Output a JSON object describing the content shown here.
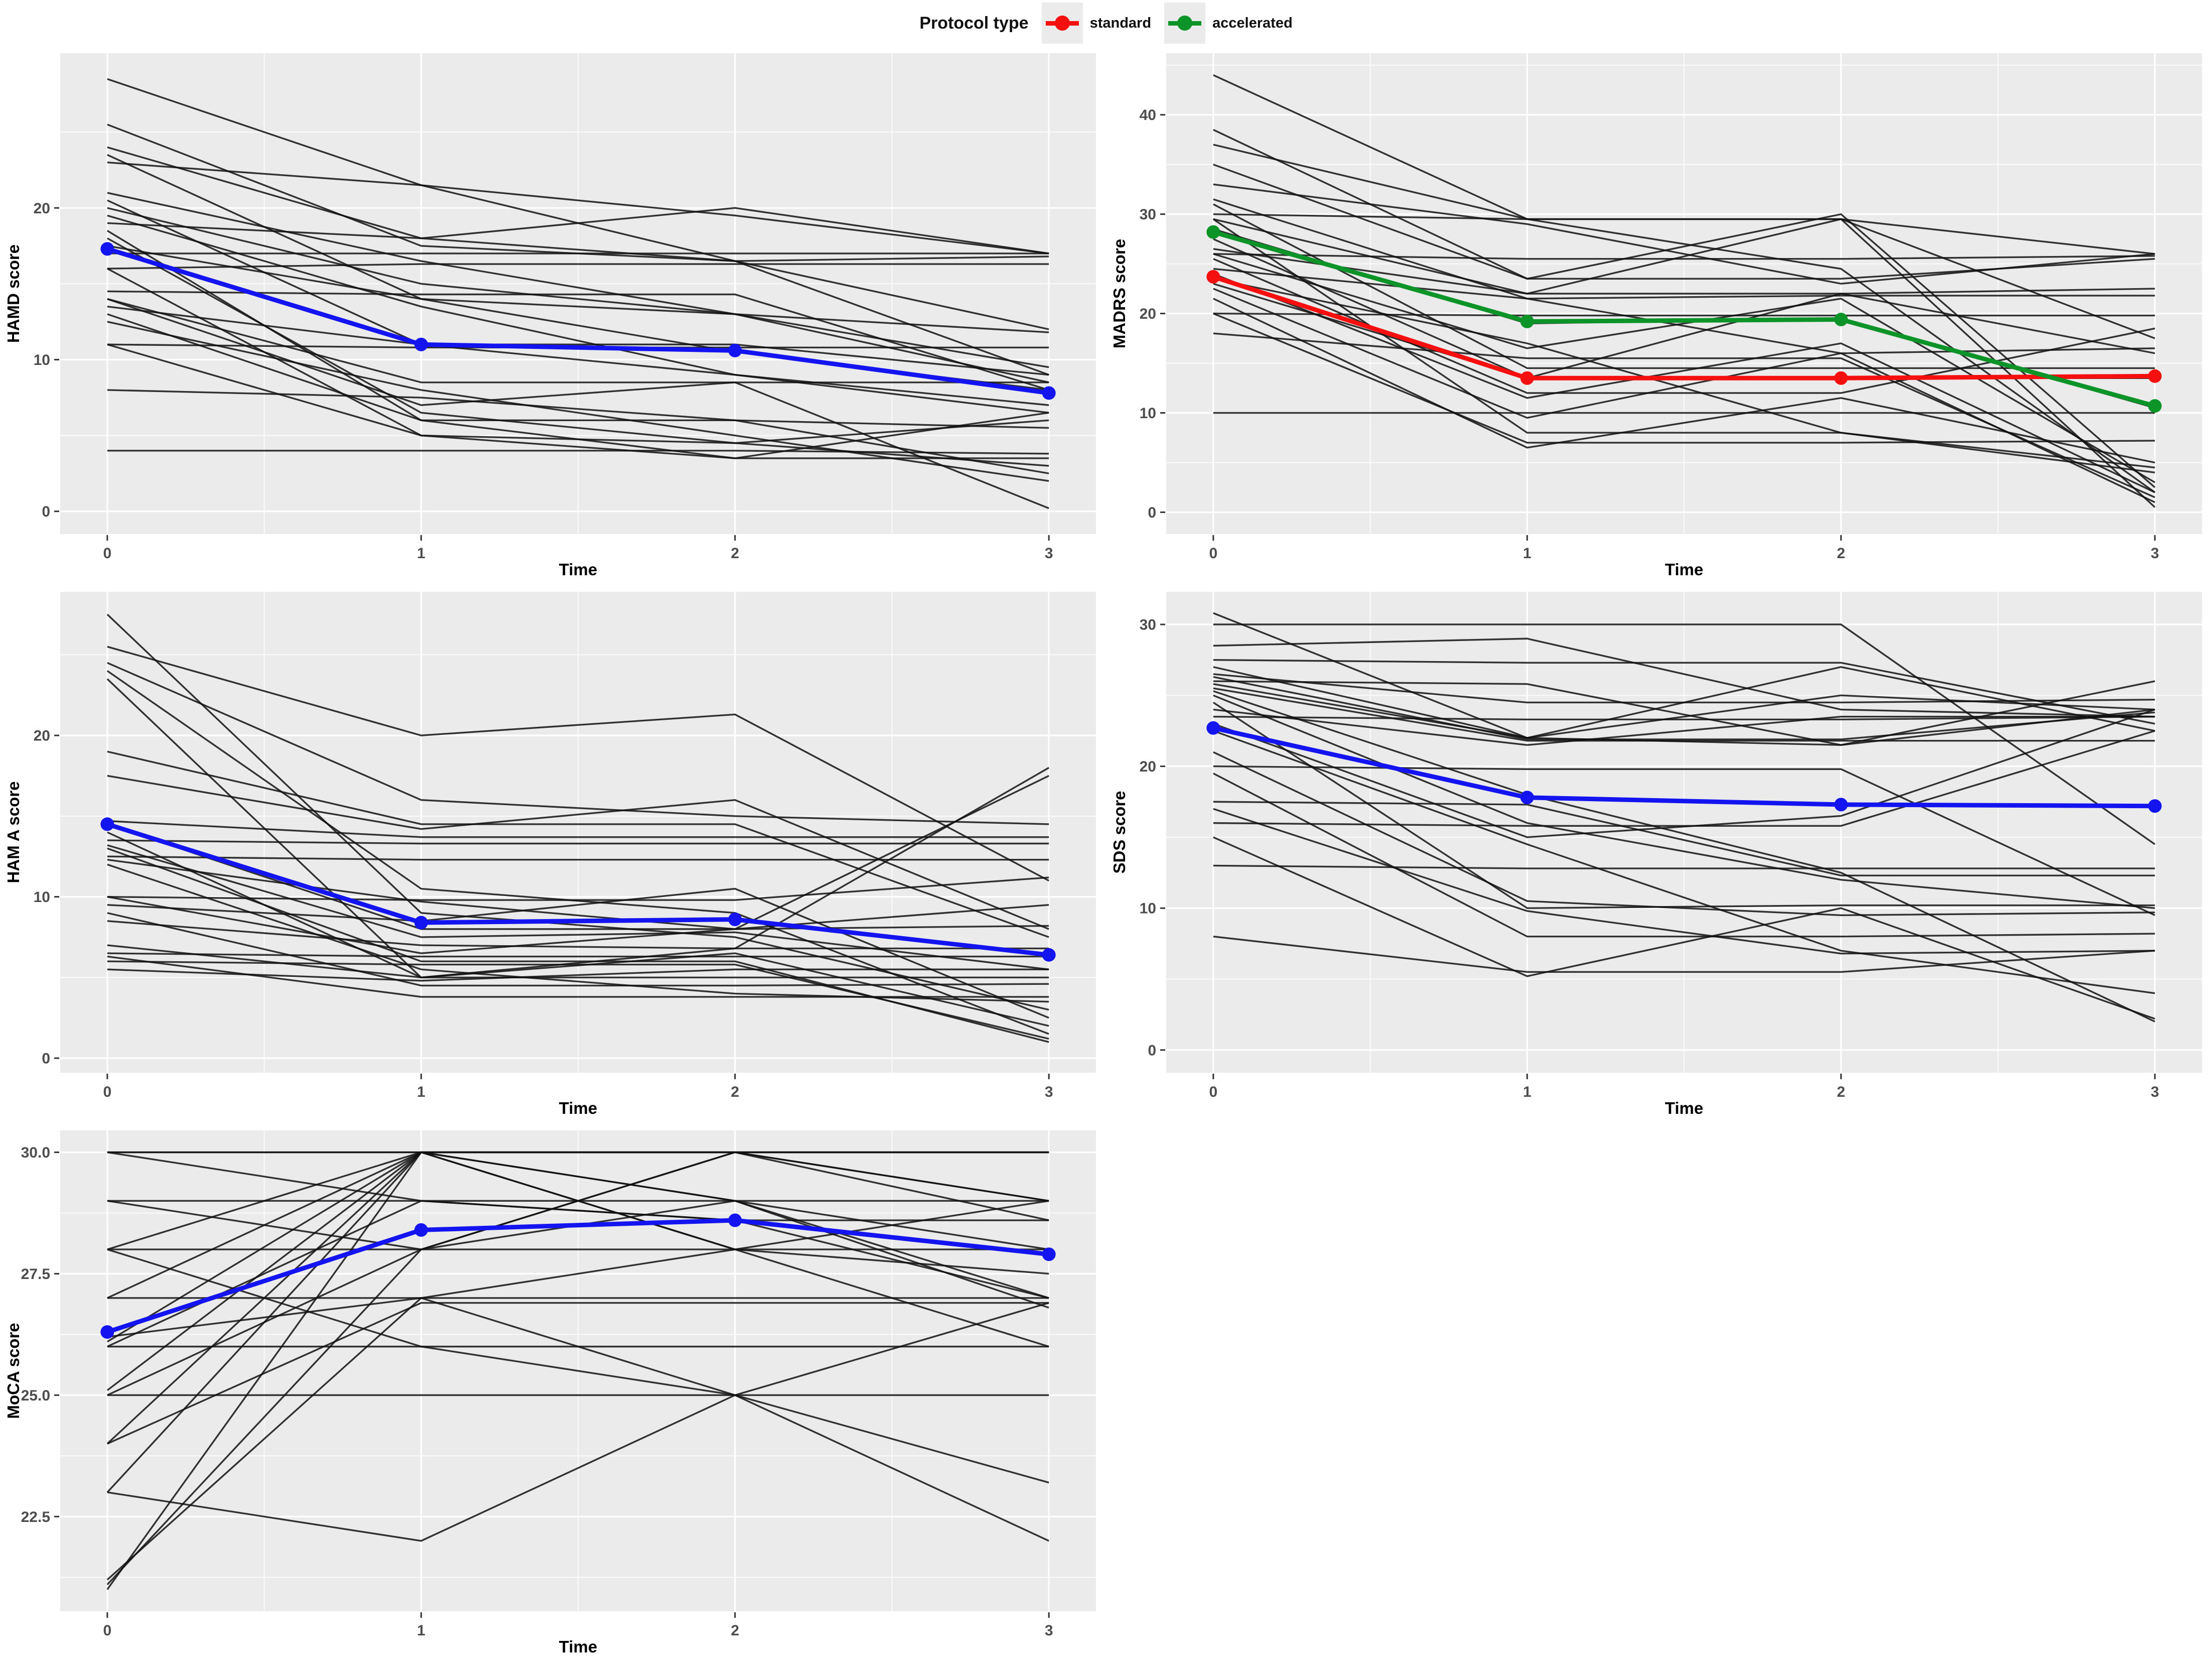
{
  "legend": {
    "title": "Protocol type",
    "items": [
      {
        "label": "standard",
        "color": "#f50f0f"
      },
      {
        "label": "accelerated",
        "color": "#0c9428"
      }
    ]
  },
  "colors": {
    "panel_bg": "#ebebeb",
    "grid": "#ffffff",
    "individual": "#111111",
    "mean_blue": "#1414f0",
    "axis_text": "#4d4d4d",
    "axis_title": "#000000",
    "tick_mark": "#333333"
  },
  "chart_data": [
    {
      "type": "line",
      "ylabel": "HAMD score",
      "xlabel": "Time",
      "x": [
        0,
        1,
        2,
        3
      ],
      "xtick_labels": [
        "0",
        "1",
        "2",
        "3"
      ],
      "xlim": [
        -0.15,
        3.15
      ],
      "ylim": [
        -1.5,
        30.2
      ],
      "yticks": [
        0,
        10,
        20
      ],
      "ytick_labels": [
        "0",
        "10",
        "20"
      ],
      "grid": true,
      "means": [
        {
          "name": "overall mean",
          "color": "#1414f0",
          "values": [
            17.3,
            11.0,
            10.6,
            7.8
          ]
        }
      ],
      "individuals": [
        [
          28.5,
          21.5,
          19.5,
          17
        ],
        [
          25.5,
          17.5,
          16.5,
          16.8
        ],
        [
          24,
          18,
          16.5,
          9
        ],
        [
          23.5,
          14,
          13,
          8.5
        ],
        [
          23,
          21.5,
          16.5,
          12
        ],
        [
          21,
          16.5,
          13,
          9.5
        ],
        [
          20.5,
          11,
          9,
          7
        ],
        [
          20,
          15,
          13,
          11.8
        ],
        [
          19.5,
          13.5,
          9,
          6.5
        ],
        [
          19,
          18,
          20,
          17
        ],
        [
          18.5,
          6,
          6,
          2.5
        ],
        [
          18,
          6.5,
          4.5,
          3
        ],
        [
          17.5,
          14,
          10.5,
          8
        ],
        [
          17,
          17,
          17,
          17
        ],
        [
          16,
          16.3,
          16.3,
          16.3
        ],
        [
          16,
          5,
          4.5,
          6
        ],
        [
          14.5,
          14.3,
          14.3,
          8
        ],
        [
          14,
          8.5,
          8.5,
          8.5
        ],
        [
          14,
          7,
          8.5,
          0.2
        ],
        [
          13.5,
          11,
          11,
          9
        ],
        [
          13,
          6,
          3.5,
          3.5
        ],
        [
          12.5,
          8,
          5,
          2
        ],
        [
          11,
          10.8,
          10.8,
          10.8
        ],
        [
          11,
          5,
          3.5,
          6.5
        ],
        [
          8,
          7.5,
          6,
          5.5
        ],
        [
          4,
          4,
          4,
          3.8
        ]
      ]
    },
    {
      "type": "line",
      "ylabel": "MADRS score",
      "xlabel": "Time",
      "x": [
        0,
        1,
        2,
        3
      ],
      "xtick_labels": [
        "0",
        "1",
        "2",
        "3"
      ],
      "xlim": [
        -0.15,
        3.15
      ],
      "ylim": [
        -2.2,
        46.2
      ],
      "yticks": [
        0,
        10,
        20,
        30,
        40
      ],
      "ytick_labels": [
        "0",
        "10",
        "20",
        "30",
        "40"
      ],
      "grid": true,
      "means": [
        {
          "name": "standard mean",
          "color": "#f50f0f",
          "values": [
            23.7,
            13.5,
            13.5,
            13.7
          ]
        },
        {
          "name": "accelerated mean",
          "color": "#0c9428",
          "values": [
            28.2,
            19.2,
            19.4,
            10.7
          ]
        }
      ],
      "individuals": [
        [
          44,
          29.5,
          24.5,
          2
        ],
        [
          38.5,
          23.5,
          30,
          2.5
        ],
        [
          37,
          29.5,
          29.5,
          17.5
        ],
        [
          35,
          23.5,
          23.5,
          25.5
        ],
        [
          33,
          29,
          23,
          26
        ],
        [
          31.5,
          21.5,
          16,
          1
        ],
        [
          31,
          14.5,
          14.5,
          14.5
        ],
        [
          30,
          29.5,
          29.5,
          26
        ],
        [
          29.5,
          8,
          8,
          4
        ],
        [
          29.5,
          22,
          29.5,
          0.5
        ],
        [
          28.5,
          19,
          19.5,
          10.5
        ],
        [
          27.5,
          13.5,
          22,
          16
        ],
        [
          26.5,
          22,
          22,
          22.5
        ],
        [
          26,
          16.5,
          21.5,
          3
        ],
        [
          26,
          25.5,
          25.5,
          25.8
        ],
        [
          25.5,
          12,
          12,
          18.5
        ],
        [
          24.5,
          21.5,
          21.8,
          21.8
        ],
        [
          24,
          11.5,
          17,
          2
        ],
        [
          23.5,
          17,
          8,
          4.5
        ],
        [
          23,
          13.5,
          13.5,
          13.5
        ],
        [
          22.5,
          9.5,
          16,
          16.5
        ],
        [
          21.5,
          6.5,
          11.5,
          5
        ],
        [
          20,
          19.8,
          19.8,
          19.8
        ],
        [
          20,
          7,
          7,
          7.2
        ],
        [
          18,
          15.5,
          15.5,
          1.5
        ],
        [
          10,
          10,
          10,
          10
        ]
      ]
    },
    {
      "type": "line",
      "ylabel": "HAM A score",
      "xlabel": "Time",
      "x": [
        0,
        1,
        2,
        3
      ],
      "xtick_labels": [
        "0",
        "1",
        "2",
        "3"
      ],
      "xlim": [
        -0.15,
        3.15
      ],
      "ylim": [
        -0.9,
        28.9
      ],
      "yticks": [
        0,
        10,
        20
      ],
      "ytick_labels": [
        "0",
        "10",
        "20"
      ],
      "grid": true,
      "means": [
        {
          "name": "overall mean",
          "color": "#1414f0",
          "values": [
            14.5,
            8.4,
            8.6,
            6.4
          ]
        }
      ],
      "individuals": [
        [
          27.5,
          9,
          7.5,
          3
        ],
        [
          25.5,
          20,
          21.3,
          11
        ],
        [
          24.5,
          16,
          15,
          14.5
        ],
        [
          24,
          10.5,
          9,
          1.5
        ],
        [
          23.5,
          5,
          5,
          5
        ],
        [
          19,
          14.5,
          14.5,
          7.5
        ],
        [
          17.5,
          14.2,
          16,
          8
        ],
        [
          14.7,
          13.7,
          13.7,
          13.7
        ],
        [
          14.5,
          8,
          8,
          8.2
        ],
        [
          14,
          5,
          6.5,
          2
        ],
        [
          13.5,
          13.3,
          13.3,
          13.3
        ],
        [
          13.2,
          7.5,
          7.8,
          5.5
        ],
        [
          13,
          6,
          6,
          1
        ],
        [
          12.5,
          12.3,
          12.3,
          12.3
        ],
        [
          12.3,
          9.7,
          8,
          9.5
        ],
        [
          12,
          5.5,
          4,
          3.5
        ],
        [
          10,
          9.8,
          9.8,
          11.2
        ],
        [
          10,
          6.5,
          8,
          17.5
        ],
        [
          9.5,
          8.5,
          10.5,
          2.5
        ],
        [
          9,
          4.5,
          4.5,
          4.6
        ],
        [
          8.5,
          7,
          6.8,
          6.8
        ],
        [
          7,
          5,
          6.8,
          18
        ],
        [
          6.5,
          6.3,
          6.3,
          6.3
        ],
        [
          6.3,
          3.8,
          3.8,
          3.8
        ],
        [
          6,
          5.8,
          5.8,
          1.2
        ],
        [
          5.5,
          4.8,
          5.5,
          5.5
        ]
      ]
    },
    {
      "type": "line",
      "ylabel": "SDS score",
      "xlabel": "Time",
      "x": [
        0,
        1,
        2,
        3
      ],
      "xtick_labels": [
        "0",
        "1",
        "2",
        "3"
      ],
      "xlim": [
        -0.15,
        3.15
      ],
      "ylim": [
        -1.6,
        32.3
      ],
      "yticks": [
        0,
        10,
        20,
        30
      ],
      "ytick_labels": [
        "0",
        "10",
        "20",
        "30"
      ],
      "grid": true,
      "means": [
        {
          "name": "overall mean",
          "color": "#1414f0",
          "values": [
            22.7,
            17.8,
            17.3,
            17.2
          ]
        }
      ],
      "individuals": [
        [
          30,
          30,
          30,
          14.5
        ],
        [
          30.8,
          22,
          21.5,
          24
        ],
        [
          28.5,
          29,
          24,
          23.5
        ],
        [
          27.5,
          27.3,
          27.3,
          23
        ],
        [
          27,
          22,
          27,
          22.5
        ],
        [
          26.5,
          24.5,
          24.5,
          24.7
        ],
        [
          26.3,
          21.9,
          21.9,
          23.8
        ],
        [
          26,
          25.8,
          21.5,
          26
        ],
        [
          25.8,
          22,
          25,
          24
        ],
        [
          25.5,
          21.8,
          21.8,
          21.8
        ],
        [
          25.3,
          18,
          12.5,
          2
        ],
        [
          25,
          16,
          12,
          10
        ],
        [
          24.5,
          10,
          10.2,
          10.2
        ],
        [
          24,
          21.5,
          23.5,
          23.5
        ],
        [
          23.5,
          23.3,
          23.3,
          23.5
        ],
        [
          23,
          15,
          16.5,
          24
        ],
        [
          22.5,
          14.5,
          7,
          4
        ],
        [
          21,
          10.5,
          9.5,
          9.7
        ],
        [
          20,
          19.8,
          19.8,
          9.5
        ],
        [
          19.5,
          8,
          8,
          8.2
        ],
        [
          17.5,
          17.3,
          12.3,
          12.3
        ],
        [
          17,
          9.8,
          6.8,
          7
        ],
        [
          16,
          15.8,
          15.8,
          22.5
        ],
        [
          15,
          5.2,
          10,
          2.2
        ],
        [
          13,
          12.8,
          12.8,
          12.8
        ],
        [
          8,
          5.5,
          5.5,
          7
        ]
      ]
    },
    {
      "type": "line",
      "ylabel": "MoCA score",
      "xlabel": "Time",
      "x": [
        0,
        1,
        2,
        3
      ],
      "xtick_labels": [
        "0",
        "1",
        "2",
        "3"
      ],
      "xlim": [
        -0.15,
        3.15
      ],
      "ylim": [
        20.55,
        30.45
      ],
      "yticks": [
        22.5,
        25.0,
        27.5,
        30.0
      ],
      "ytick_labels": [
        "22.5",
        "25.0",
        "27.5",
        "30.0"
      ],
      "grid": true,
      "means": [
        {
          "name": "overall mean",
          "color": "#1414f0",
          "values": [
            26.3,
            28.4,
            28.6,
            27.9
          ]
        }
      ],
      "individuals": [
        [
          30,
          30,
          30,
          30
        ],
        [
          30,
          30,
          30,
          30
        ],
        [
          29,
          29,
          29,
          29
        ],
        [
          28,
          28,
          28,
          28
        ],
        [
          27,
          27,
          27,
          27
        ],
        [
          26,
          26,
          26,
          26
        ],
        [
          25,
          25,
          25,
          25
        ],
        [
          21,
          30,
          30,
          29
        ],
        [
          21.1,
          28,
          30,
          28.6
        ],
        [
          21.2,
          27,
          28,
          27.5
        ],
        [
          23,
          30,
          29,
          26.8
        ],
        [
          24,
          30,
          28,
          29
        ],
        [
          25.1,
          30,
          30,
          30
        ],
        [
          26.1,
          30,
          29,
          28
        ],
        [
          27,
          30,
          30,
          29
        ],
        [
          26,
          29,
          28.6,
          28.6
        ],
        [
          25,
          28,
          29,
          27
        ],
        [
          28,
          30,
          28,
          26
        ],
        [
          29,
          28,
          30,
          30
        ],
        [
          23,
          22,
          25,
          22
        ],
        [
          26.2,
          27,
          25,
          23.2
        ],
        [
          24,
          26.9,
          26.9,
          26.9
        ],
        [
          30,
          29,
          28.6,
          27
        ],
        [
          28,
          26,
          25,
          26.9
        ]
      ]
    }
  ]
}
